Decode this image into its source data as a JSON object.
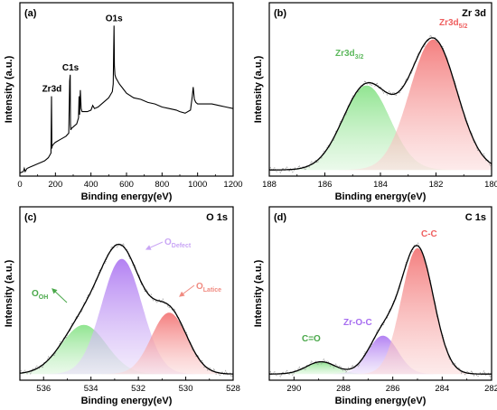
{
  "chart_data": [
    {
      "type": "line",
      "panel_label": "(a)",
      "xlabel": "Binding energy(eV)",
      "ylabel": "Intensity (a.u.)",
      "xlim": [
        0,
        1200
      ],
      "x_reversed": false,
      "ylim": [
        0,
        100
      ],
      "xticks": [
        0,
        200,
        400,
        600,
        800,
        1000,
        1200
      ],
      "grid": false,
      "series": [
        {
          "color": "#000000",
          "x": [
            0,
            20,
            25,
            30,
            40,
            60,
            80,
            100,
            120,
            140,
            160,
            175,
            178,
            180,
            182,
            185,
            190,
            200,
            230,
            260,
            275,
            280,
            283,
            285,
            287,
            290,
            300,
            320,
            330,
            333,
            336,
            340,
            345,
            350,
            380,
            400,
            410,
            420,
            440,
            460,
            480,
            500,
            510,
            520,
            525,
            528,
            530,
            532,
            535,
            540,
            560,
            580,
            600,
            640,
            680,
            720,
            760,
            800,
            840,
            880,
            900,
            930,
            960,
            970,
            975,
            978,
            982,
            990,
            1000,
            1040,
            1080,
            1120,
            1160,
            1200
          ],
          "y": [
            2,
            3,
            5,
            3,
            5,
            6,
            7,
            8,
            9,
            10,
            12,
            15,
            52,
            18,
            20,
            20,
            21,
            22,
            24,
            26,
            28,
            62,
            66,
            34,
            30,
            31,
            32,
            34,
            38,
            52,
            40,
            56,
            44,
            42,
            42,
            43,
            46,
            44,
            45,
            47,
            49,
            51,
            53,
            55,
            60,
            82,
            98,
            72,
            66,
            64,
            60,
            57,
            54,
            51,
            50,
            48,
            47,
            45,
            44,
            43,
            42,
            41,
            43,
            52,
            58,
            55,
            50,
            48,
            47,
            47,
            47,
            46,
            45,
            44
          ]
        }
      ],
      "annotations": [
        {
          "text": "Zr3d",
          "x": 180,
          "y": 52
        },
        {
          "text": "C1s",
          "x": 285,
          "y": 66
        },
        {
          "text": "O1s",
          "x": 530,
          "y": 98
        }
      ]
    },
    {
      "type": "line",
      "panel_label": "(b)",
      "title": "Zr 3d",
      "xlabel": "Binding energy(eV)",
      "ylabel": "Intensity (a.u.)",
      "xlim": [
        188,
        180
      ],
      "x_reversed": true,
      "ylim": [
        0,
        100
      ],
      "xticks": [
        188,
        186,
        184,
        182,
        180
      ],
      "grid": false,
      "components": [
        {
          "name": "Zr3d3/2",
          "label_main": "Zr3d",
          "label_sub": "3/2",
          "center": 184.5,
          "height": 55,
          "sigma": 0.85,
          "color": "#6fcf6f"
        },
        {
          "name": "Zr3d5/2",
          "label_main": "Zr3d",
          "label_sub": "5/2",
          "center": 182.1,
          "height": 85,
          "sigma": 0.85,
          "color": "#f07070"
        }
      ],
      "envelope_color": "#000000",
      "raw_color": "#9a9a9a"
    },
    {
      "type": "line",
      "panel_label": "(c)",
      "title": "O 1s",
      "xlabel": "Binding energy(eV)",
      "ylabel": "Intensity (a.u.)",
      "xlim": [
        537,
        528
      ],
      "x_reversed": true,
      "ylim": [
        0,
        100
      ],
      "xticks": [
        536,
        534,
        532,
        530,
        528
      ],
      "grid": false,
      "components": [
        {
          "name": "OOH",
          "label_main": "O",
          "label_sub": "OH",
          "center": 534.3,
          "height": 32,
          "sigma": 0.95,
          "color": "#8fe08f"
        },
        {
          "name": "ODefect",
          "label_main": "O",
          "label_sub": "Defect",
          "center": 532.7,
          "height": 75,
          "sigma": 0.85,
          "color": "#b57cf0"
        },
        {
          "name": "OLatice",
          "label_main": "O",
          "label_sub": "Latice",
          "center": 530.7,
          "height": 40,
          "sigma": 0.75,
          "color": "#f07a70"
        }
      ],
      "envelope_color": "#000000",
      "raw_color": "#9a9a9a"
    },
    {
      "type": "line",
      "panel_label": "(d)",
      "title": "C 1s",
      "xlabel": "Binding energy(eV)",
      "ylabel": "Intensity (a.u.)",
      "xlim": [
        291,
        282
      ],
      "x_reversed": true,
      "ylim": [
        0,
        100
      ],
      "xticks": [
        290,
        288,
        286,
        284,
        282
      ],
      "grid": false,
      "components": [
        {
          "name": "C=O",
          "label_main": "C=O",
          "label_sub": "",
          "center": 288.9,
          "height": 8,
          "sigma": 0.6,
          "color": "#8fe08f"
        },
        {
          "name": "Zr-O-C",
          "label_main": "Zr-O-C",
          "label_sub": "",
          "center": 286.4,
          "height": 25,
          "sigma": 0.6,
          "color": "#b57cf0"
        },
        {
          "name": "C-C",
          "label_main": "C-C",
          "label_sub": "",
          "center": 285.0,
          "height": 82,
          "sigma": 0.65,
          "color": "#f07a70"
        }
      ],
      "envelope_color": "#000000",
      "raw_color": "#9a9a9a"
    }
  ]
}
